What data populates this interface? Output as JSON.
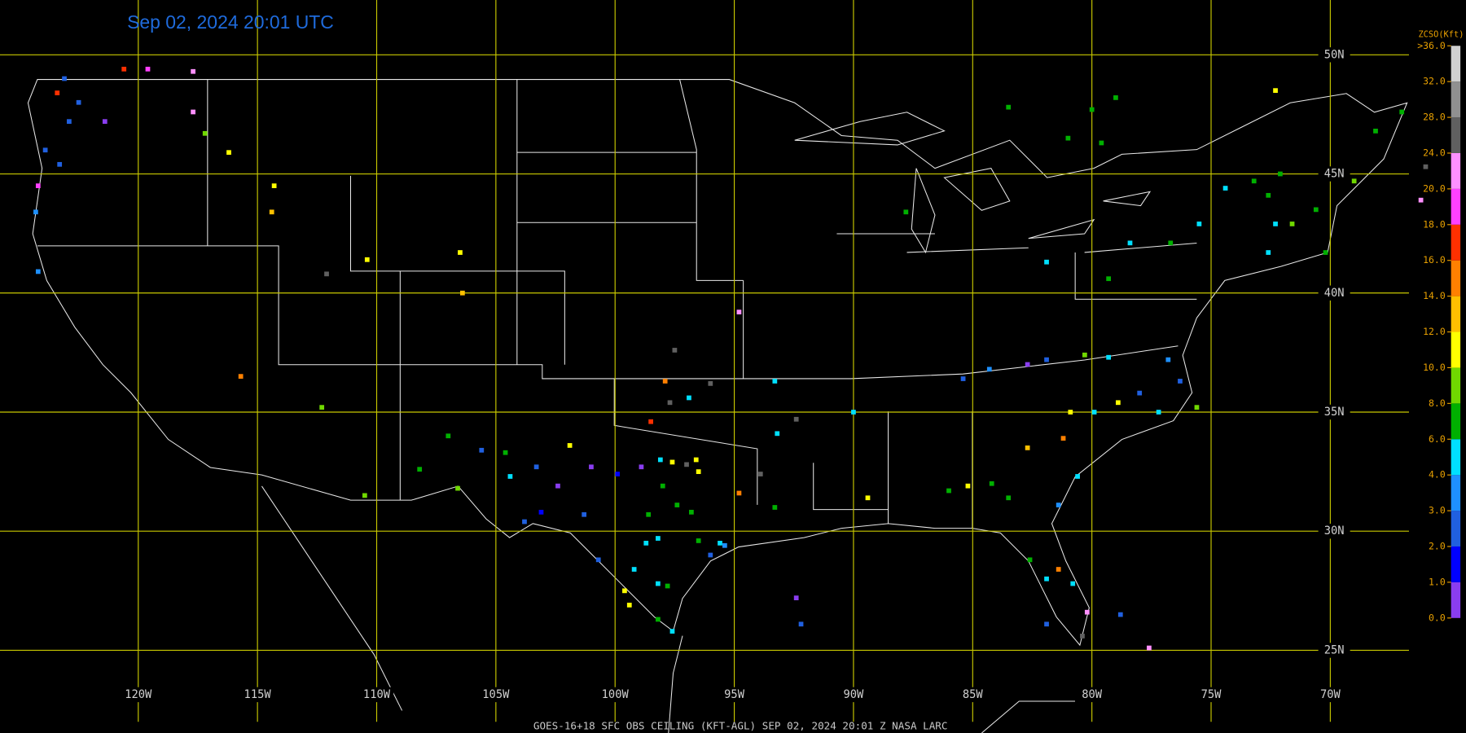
{
  "chart_data": {
    "type": "scatter",
    "title": "Sep 02, 2024 20:01 UTC",
    "footer": "GOES-16+18  SFC OBS CEILING (KFT-AGL)  SEP 02, 2024 20:01 Z   NASA LARC",
    "xlim": [
      -125.8,
      -66.7
    ],
    "ylim": [
      22.0,
      52.3
    ],
    "xticks": [
      {
        "value": -120,
        "label": "120W"
      },
      {
        "value": -115,
        "label": "115W"
      },
      {
        "value": -110,
        "label": "110W"
      },
      {
        "value": -105,
        "label": "105W"
      },
      {
        "value": -100,
        "label": "100W"
      },
      {
        "value": -95,
        "label": "95W"
      },
      {
        "value": -90,
        "label": "90W"
      },
      {
        "value": -85,
        "label": "85W"
      },
      {
        "value": -80,
        "label": "80W"
      },
      {
        "value": -75,
        "label": "75W"
      },
      {
        "value": -70,
        "label": "70W"
      }
    ],
    "yticks": [
      {
        "value": 50,
        "label": "50N"
      },
      {
        "value": 45,
        "label": "45N"
      },
      {
        "value": 40,
        "label": "40N"
      },
      {
        "value": 35,
        "label": "35N"
      },
      {
        "value": 30,
        "label": "30N"
      },
      {
        "value": 25,
        "label": "25N"
      }
    ],
    "grid": true,
    "grid_color": "#c8c800",
    "colorbar": {
      "title": "ZCSO(Kft)",
      "ticks": [
        {
          "value": 0,
          "label": "0.0"
        },
        {
          "value": 1,
          "label": "1.0"
        },
        {
          "value": 2,
          "label": "2.0"
        },
        {
          "value": 3,
          "label": "3.0"
        },
        {
          "value": 4,
          "label": "4.0"
        },
        {
          "value": 6,
          "label": "6.0"
        },
        {
          "value": 8,
          "label": "8.0"
        },
        {
          "value": 10,
          "label": "10.0"
        },
        {
          "value": 12,
          "label": "12.0"
        },
        {
          "value": 14,
          "label": "14.0"
        },
        {
          "value": 16,
          "label": "16.0"
        },
        {
          "value": 18,
          "label": "18.0"
        },
        {
          "value": 20,
          "label": "20.0"
        },
        {
          "value": 24,
          "label": "24.0"
        },
        {
          "value": 28,
          "label": "28.0"
        },
        {
          "value": 32,
          "label": "32.0"
        },
        {
          "value": 36,
          "label": ">36.0"
        }
      ],
      "colors": [
        "#8a3df0",
        "#0000ff",
        "#2060e0",
        "#1e90ff",
        "#00e0ff",
        "#00b000",
        "#70d800",
        "#ffff00",
        "#ffc000",
        "#ff8000",
        "#ff3000",
        "#ff40ff",
        "#ff90ff",
        "#606060",
        "#909090",
        "#d0d0d0"
      ]
    },
    "stations": {
      "lon": [
        -123.4,
        -123.1,
        -122.9,
        -122.5,
        -123.9,
        -123.3,
        -124.2,
        -124.3,
        -124.2,
        -120.6,
        -119.6,
        -117.7,
        -117.7,
        -121.4,
        -117.2,
        -116.2,
        -114.3,
        -114.4,
        -110.4,
        -106.5,
        -106.4,
        -112.1,
        -115.7,
        -112.3,
        -110.5,
        -108.2,
        -107.0,
        -106.6,
        -105.6,
        -104.6,
        -104.4,
        -103.3,
        -102.4,
        -101.9,
        -101.0,
        -101.3,
        -103.1,
        -103.8,
        -97.5,
        -97.9,
        -96.9,
        -96.0,
        -97.7,
        -98.5,
        -94.8,
        -93.3,
        -92.4,
        -93.2,
        -97.6,
        -97.0,
        -96.6,
        -96.5,
        -98.1,
        -98.9,
        -99.9,
        -98.0,
        -97.4,
        -98.6,
        -96.8,
        -98.7,
        -98.2,
        -96.5,
        -95.6,
        -95.4,
        -96.0,
        -94.8,
        -93.9,
        -93.3,
        -99.2,
        -98.2,
        -97.8,
        -99.6,
        -99.4,
        -98.2,
        -97.6,
        -100.7,
        -92.4,
        -92.2,
        -89.4,
        -90.0,
        -86.0,
        -85.2,
        -84.2,
        -83.5,
        -82.7,
        -81.2,
        -80.9,
        -79.9,
        -78.9,
        -80.6,
        -81.4,
        -82.6,
        -81.9,
        -81.4,
        -80.8,
        -80.2,
        -80.4,
        -81.9,
        -78.8,
        -77.6,
        -85.4,
        -84.3,
        -82.7,
        -81.9,
        -80.3,
        -79.3,
        -78.0,
        -77.2,
        -76.3,
        -76.8,
        -75.6,
        -83.5,
        -80.0,
        -79.0,
        -81.0,
        -79.6,
        -87.8,
        -81.9,
        -78.4,
        -76.7,
        -79.3,
        -74.4,
        -73.2,
        -72.6,
        -72.1,
        -72.3,
        -71.6,
        -70.2,
        -70.6,
        -69.0,
        -68.1,
        -67.0,
        -72.3,
        -72.6,
        -75.5,
        -66.0,
        -66.2
      ],
      "lat": [
        48.4,
        49.0,
        47.2,
        48.0,
        46.0,
        45.4,
        44.5,
        43.4,
        40.9,
        49.4,
        49.4,
        49.3,
        47.6,
        47.2,
        46.7,
        45.9,
        44.5,
        43.4,
        41.4,
        41.7,
        40.0,
        40.8,
        36.5,
        35.2,
        31.5,
        32.6,
        34.0,
        31.8,
        33.4,
        33.3,
        32.3,
        32.7,
        31.9,
        33.6,
        32.7,
        30.7,
        30.8,
        30.4,
        37.6,
        36.3,
        35.6,
        36.2,
        35.4,
        34.6,
        39.2,
        36.3,
        34.7,
        34.1,
        32.9,
        32.8,
        33.0,
        32.5,
        33.0,
        32.7,
        32.4,
        31.9,
        31.1,
        30.7,
        30.8,
        29.5,
        29.7,
        29.6,
        29.5,
        29.4,
        29.0,
        31.6,
        32.4,
        31.0,
        28.4,
        27.8,
        27.7,
        27.5,
        26.9,
        26.3,
        25.8,
        28.8,
        27.2,
        26.1,
        31.4,
        35.0,
        31.7,
        31.9,
        32.0,
        31.4,
        33.5,
        33.9,
        35.0,
        35.0,
        35.4,
        32.3,
        31.1,
        28.8,
        28.0,
        28.4,
        27.8,
        26.6,
        25.6,
        26.1,
        26.5,
        25.1,
        36.4,
        36.8,
        37.0,
        37.2,
        37.4,
        37.3,
        35.8,
        35.0,
        36.3,
        37.2,
        35.2,
        47.8,
        47.7,
        48.2,
        46.5,
        46.3,
        43.4,
        41.3,
        42.1,
        42.1,
        40.6,
        44.4,
        44.7,
        44.1,
        45.0,
        42.9,
        42.9,
        41.7,
        43.5,
        44.7,
        46.8,
        47.6,
        48.5,
        41.7,
        42.9,
        45.3,
        43.9
      ],
      "values": [
        17,
        2.5,
        2.5,
        2.0,
        2.5,
        2.0,
        19,
        3.5,
        3.0,
        17,
        19,
        22,
        22,
        0.5,
        9,
        11,
        11,
        12,
        11,
        11,
        12,
        26,
        15,
        9,
        9,
        7,
        7,
        9,
        2.5,
        7,
        5,
        2.5,
        0.5,
        11,
        0.5,
        2.5,
        1.5,
        2.5,
        26,
        15,
        5,
        26,
        26,
        17,
        22,
        5,
        26,
        5,
        11,
        26,
        11,
        11,
        5,
        0.5,
        1.5,
        7,
        7,
        7,
        7,
        5,
        4.5,
        7,
        5,
        3.5,
        2.5,
        15,
        26,
        7,
        5,
        5,
        7,
        11,
        11,
        7,
        5,
        2.5,
        0.5,
        2,
        11,
        5,
        7,
        11,
        7,
        7,
        13,
        15,
        11,
        5,
        11,
        5,
        3,
        7,
        5,
        15,
        5,
        22,
        26,
        2.5,
        2.5,
        22,
        2.5,
        3,
        0.5,
        2.5,
        9,
        5,
        2.5,
        5,
        2,
        3,
        9,
        7,
        7,
        7,
        7,
        7,
        7,
        5,
        5,
        7,
        7,
        5,
        7,
        7,
        7,
        5,
        9,
        7,
        7,
        9,
        7,
        7,
        11,
        5,
        5,
        26,
        22
      ]
    }
  }
}
